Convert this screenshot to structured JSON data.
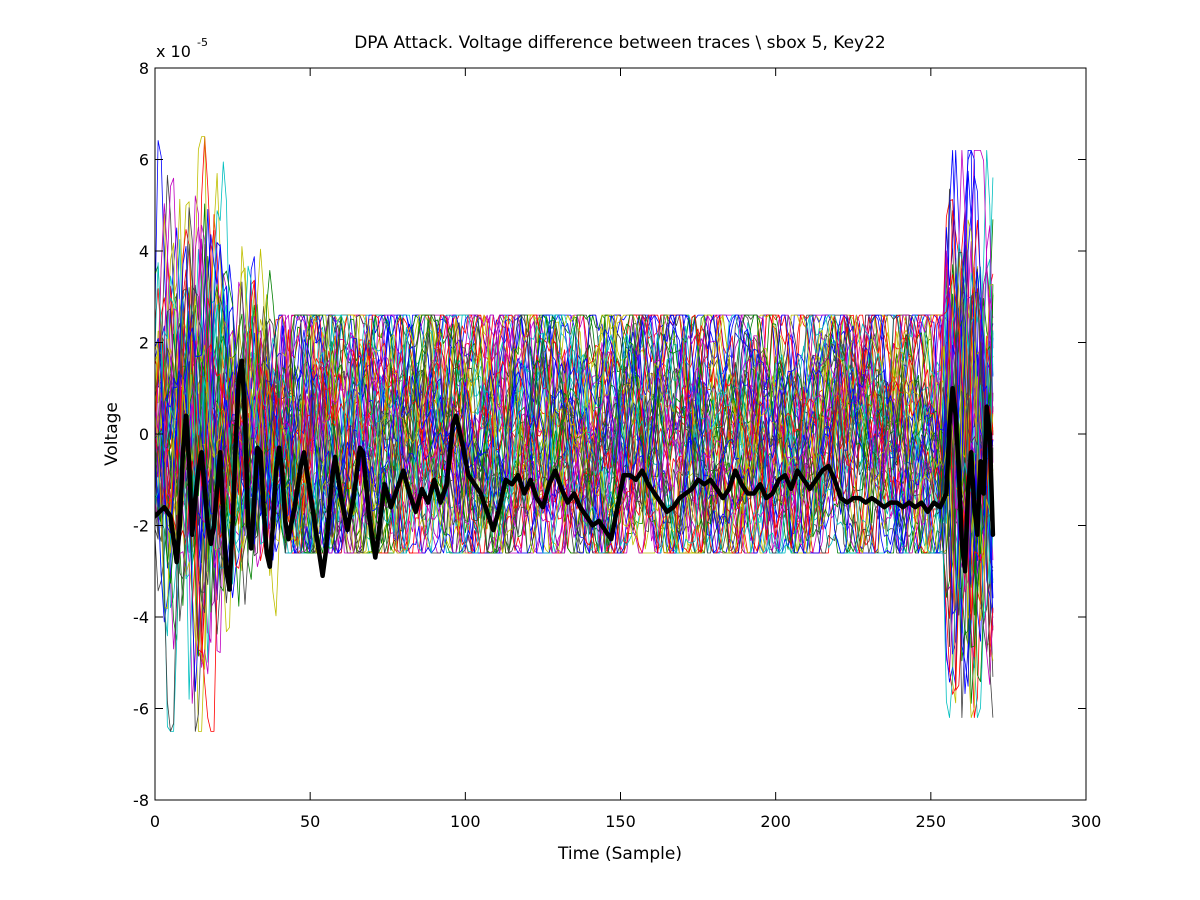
{
  "chart_data": {
    "type": "line",
    "title": "DPA Attack. Voltage difference between traces \\ sbox 5, Key22",
    "xlabel": "Time (Sample)",
    "ylabel": "Voltage",
    "y_exponent_base": "x 10",
    "y_exponent_power": "-5",
    "xlim": [
      0,
      300
    ],
    "ylim": [
      -8,
      8
    ],
    "xticks": [
      0,
      50,
      100,
      150,
      200,
      250,
      300
    ],
    "yticks": [
      -8,
      -6,
      -4,
      -2,
      0,
      2,
      4,
      6,
      8
    ],
    "xtick_labels": [
      "0",
      "50",
      "100",
      "150",
      "200",
      "250",
      "300"
    ],
    "ytick_labels": [
      "-8",
      "-6",
      "-4",
      "-2",
      "0",
      "2",
      "4",
      "6",
      "8"
    ],
    "grid": false,
    "legend": "none",
    "n_samples": 271,
    "background_series_count": 64,
    "background_palette": [
      "#0000ff",
      "#008000",
      "#ff0000",
      "#00bfbf",
      "#bf00bf",
      "#bfbf00",
      "#404040"
    ],
    "highlight_series_color": "#000000",
    "highlight_series_anchors": [
      [
        0,
        -1.8
      ],
      [
        3,
        -1.6
      ],
      [
        5,
        -1.8
      ],
      [
        7,
        -2.8
      ],
      [
        8,
        -2.0
      ],
      [
        9,
        -0.4
      ],
      [
        10,
        0.4
      ],
      [
        11,
        -0.6
      ],
      [
        12,
        -2.2
      ],
      [
        13,
        -1.4
      ],
      [
        14,
        -0.8
      ],
      [
        15,
        -0.4
      ],
      [
        16,
        -1.2
      ],
      [
        17,
        -2.0
      ],
      [
        18,
        -2.4
      ],
      [
        19,
        -2.0
      ],
      [
        20,
        -1.2
      ],
      [
        21,
        -0.4
      ],
      [
        22,
        -1.8
      ],
      [
        23,
        -3.0
      ],
      [
        24,
        -3.4
      ],
      [
        25,
        -2.0
      ],
      [
        26,
        -0.2
      ],
      [
        27,
        1.2
      ],
      [
        28,
        1.6
      ],
      [
        29,
        0.4
      ],
      [
        30,
        -2.0
      ],
      [
        31,
        -2.5
      ],
      [
        32,
        -1.4
      ],
      [
        33,
        -0.3
      ],
      [
        34,
        -0.4
      ],
      [
        35,
        -1.6
      ],
      [
        36,
        -2.6
      ],
      [
        37,
        -2.9
      ],
      [
        38,
        -2.0
      ],
      [
        39,
        -0.8
      ],
      [
        40,
        -0.3
      ],
      [
        41,
        -0.8
      ],
      [
        42,
        -1.9
      ],
      [
        43,
        -2.3
      ],
      [
        45,
        -1.6
      ],
      [
        47,
        -0.7
      ],
      [
        48,
        -0.4
      ],
      [
        50,
        -1.3
      ],
      [
        52,
        -2.2
      ],
      [
        54,
        -3.1
      ],
      [
        55,
        -2.6
      ],
      [
        57,
        -1.0
      ],
      [
        58,
        -0.5
      ],
      [
        60,
        -1.4
      ],
      [
        62,
        -2.1
      ],
      [
        64,
        -1.4
      ],
      [
        66,
        -0.3
      ],
      [
        67,
        -0.4
      ],
      [
        69,
        -1.8
      ],
      [
        71,
        -2.7
      ],
      [
        72,
        -2.2
      ],
      [
        74,
        -1.1
      ],
      [
        76,
        -1.6
      ],
      [
        78,
        -1.2
      ],
      [
        80,
        -0.8
      ],
      [
        82,
        -1.3
      ],
      [
        84,
        -1.7
      ],
      [
        86,
        -1.2
      ],
      [
        88,
        -1.5
      ],
      [
        90,
        -1.0
      ],
      [
        92,
        -1.5
      ],
      [
        94,
        -1.1
      ],
      [
        96,
        0.2
      ],
      [
        97,
        0.4
      ],
      [
        99,
        -0.2
      ],
      [
        101,
        -0.9
      ],
      [
        103,
        -1.1
      ],
      [
        105,
        -1.3
      ],
      [
        107,
        -1.7
      ],
      [
        109,
        -2.1
      ],
      [
        111,
        -1.6
      ],
      [
        113,
        -1.0
      ],
      [
        115,
        -1.1
      ],
      [
        117,
        -0.9
      ],
      [
        119,
        -1.3
      ],
      [
        121,
        -1.0
      ],
      [
        123,
        -1.4
      ],
      [
        125,
        -1.6
      ],
      [
        127,
        -1.1
      ],
      [
        129,
        -0.8
      ],
      [
        131,
        -1.2
      ],
      [
        133,
        -1.5
      ],
      [
        135,
        -1.3
      ],
      [
        137,
        -1.6
      ],
      [
        139,
        -1.8
      ],
      [
        141,
        -2.0
      ],
      [
        143,
        -1.9
      ],
      [
        145,
        -2.1
      ],
      [
        147,
        -2.3
      ],
      [
        149,
        -1.6
      ],
      [
        151,
        -0.9
      ],
      [
        153,
        -0.9
      ],
      [
        155,
        -1.0
      ],
      [
        157,
        -0.8
      ],
      [
        159,
        -1.1
      ],
      [
        161,
        -1.3
      ],
      [
        163,
        -1.5
      ],
      [
        165,
        -1.7
      ],
      [
        167,
        -1.6
      ],
      [
        169,
        -1.4
      ],
      [
        171,
        -1.3
      ],
      [
        173,
        -1.2
      ],
      [
        175,
        -1.0
      ],
      [
        177,
        -1.1
      ],
      [
        179,
        -1.0
      ],
      [
        181,
        -1.2
      ],
      [
        183,
        -1.4
      ],
      [
        185,
        -1.2
      ],
      [
        187,
        -0.8
      ],
      [
        189,
        -1.1
      ],
      [
        191,
        -1.3
      ],
      [
        193,
        -1.3
      ],
      [
        195,
        -1.1
      ],
      [
        197,
        -1.4
      ],
      [
        199,
        -1.3
      ],
      [
        201,
        -1.0
      ],
      [
        203,
        -0.9
      ],
      [
        205,
        -1.2
      ],
      [
        207,
        -0.8
      ],
      [
        209,
        -1.0
      ],
      [
        211,
        -1.2
      ],
      [
        213,
        -1.0
      ],
      [
        215,
        -0.8
      ],
      [
        217,
        -0.7
      ],
      [
        219,
        -1.0
      ],
      [
        221,
        -1.4
      ],
      [
        223,
        -1.5
      ],
      [
        225,
        -1.4
      ],
      [
        227,
        -1.4
      ],
      [
        229,
        -1.5
      ],
      [
        231,
        -1.4
      ],
      [
        233,
        -1.5
      ],
      [
        235,
        -1.6
      ],
      [
        237,
        -1.5
      ],
      [
        239,
        -1.5
      ],
      [
        241,
        -1.6
      ],
      [
        243,
        -1.5
      ],
      [
        245,
        -1.6
      ],
      [
        247,
        -1.5
      ],
      [
        249,
        -1.7
      ],
      [
        251,
        -1.5
      ],
      [
        253,
        -1.6
      ],
      [
        255,
        -1.3
      ],
      [
        256,
        0.2
      ],
      [
        257,
        1.0
      ],
      [
        258,
        0.4
      ],
      [
        259,
        -0.8
      ],
      [
        260,
        -2.4
      ],
      [
        261,
        -3.0
      ],
      [
        262,
        -1.2
      ],
      [
        263,
        -0.4
      ],
      [
        264,
        -1.6
      ],
      [
        265,
        -2.2
      ],
      [
        266,
        -0.6
      ],
      [
        267,
        -1.3
      ],
      [
        268,
        0.6
      ],
      [
        269,
        0.0
      ],
      [
        270,
        -2.2
      ]
    ]
  }
}
